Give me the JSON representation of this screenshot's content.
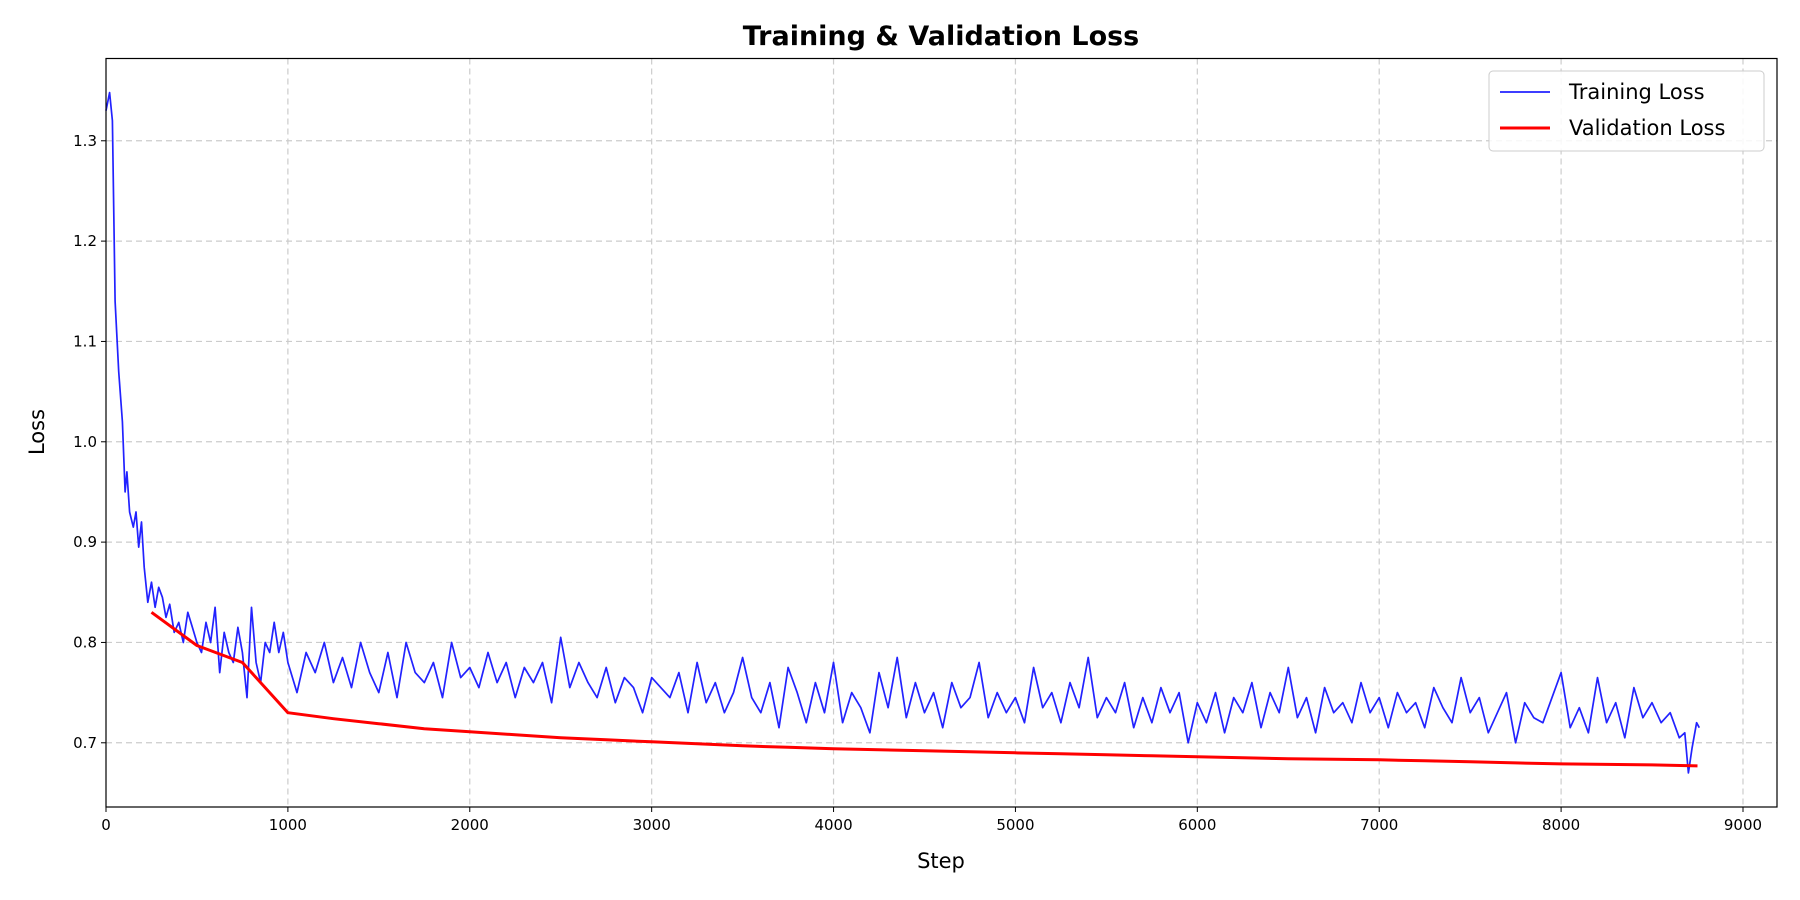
{
  "chart_data": {
    "type": "line",
    "title": "Training & Validation Loss",
    "xlabel": "Step",
    "ylabel": "Loss",
    "xlim": [
      0,
      9187
    ],
    "ylim": [
      0.636,
      1.382
    ],
    "xticks": [
      0,
      1000,
      2000,
      3000,
      4000,
      5000,
      6000,
      7000,
      8000,
      9000
    ],
    "xtick_labels": [
      "0",
      "1000",
      "2000",
      "3000",
      "4000",
      "5000",
      "6000",
      "7000",
      "8000",
      "9000"
    ],
    "yticks": [
      0.7,
      0.8,
      0.9,
      1.0,
      1.1,
      1.2,
      1.3
    ],
    "ytick_labels": [
      "0.7",
      "0.8",
      "0.9",
      "1.0",
      "1.1",
      "1.2",
      "1.3"
    ],
    "grid": true,
    "legend_position": "top-right",
    "series": [
      {
        "name": "Training Loss",
        "color": "#2222ff",
        "early": [
          [
            0,
            1.33
          ],
          [
            20,
            1.348
          ],
          [
            35,
            1.32
          ],
          [
            50,
            1.14
          ],
          [
            70,
            1.07
          ],
          [
            90,
            1.02
          ],
          [
            105,
            0.95
          ],
          [
            115,
            0.97
          ],
          [
            130,
            0.93
          ],
          [
            150,
            0.915
          ],
          [
            165,
            0.93
          ],
          [
            180,
            0.895
          ],
          [
            195,
            0.92
          ],
          [
            210,
            0.875
          ],
          [
            230,
            0.84
          ],
          [
            250,
            0.86
          ],
          [
            270,
            0.835
          ],
          [
            290,
            0.855
          ],
          [
            310,
            0.845
          ],
          [
            330,
            0.825
          ],
          [
            350,
            0.838
          ],
          [
            375,
            0.81
          ],
          [
            400,
            0.82
          ],
          [
            425,
            0.8
          ],
          [
            450,
            0.83
          ],
          [
            475,
            0.815
          ],
          [
            500,
            0.8
          ],
          [
            525,
            0.79
          ],
          [
            550,
            0.82
          ],
          [
            575,
            0.8
          ],
          [
            600,
            0.835
          ],
          [
            625,
            0.77
          ],
          [
            650,
            0.81
          ],
          [
            675,
            0.79
          ],
          [
            700,
            0.78
          ],
          [
            725,
            0.815
          ],
          [
            750,
            0.79
          ],
          [
            775,
            0.745
          ],
          [
            800,
            0.835
          ],
          [
            825,
            0.78
          ],
          [
            850,
            0.76
          ],
          [
            875,
            0.8
          ],
          [
            900,
            0.79
          ],
          [
            925,
            0.82
          ],
          [
            950,
            0.79
          ],
          [
            975,
            0.81
          ],
          [
            1000,
            0.78
          ]
        ],
        "regular": {
          "start": 1050,
          "step": 50,
          "values": [
            0.75,
            0.79,
            0.77,
            0.8,
            0.76,
            0.785,
            0.755,
            0.8,
            0.77,
            0.75,
            0.79,
            0.745,
            0.8,
            0.77,
            0.76,
            0.78,
            0.745,
            0.8,
            0.765,
            0.775,
            0.755,
            0.79,
            0.76,
            0.78,
            0.745,
            0.775,
            0.76,
            0.78,
            0.74,
            0.805,
            0.755,
            0.78,
            0.76,
            0.745,
            0.775,
            0.74,
            0.765,
            0.755,
            0.73,
            0.765,
            0.755,
            0.745,
            0.77,
            0.73,
            0.78,
            0.74,
            0.76,
            0.73,
            0.75,
            0.785,
            0.745,
            0.73,
            0.76,
            0.715,
            0.775,
            0.75,
            0.72,
            0.76,
            0.73,
            0.78,
            0.72,
            0.75,
            0.735,
            0.71,
            0.77,
            0.735,
            0.785,
            0.725,
            0.76,
            0.73,
            0.75,
            0.715,
            0.76,
            0.735,
            0.745,
            0.78,
            0.725,
            0.75,
            0.73,
            0.745,
            0.72,
            0.775,
            0.735,
            0.75,
            0.72,
            0.76,
            0.735,
            0.785,
            0.725,
            0.745,
            0.73,
            0.76,
            0.715,
            0.745,
            0.72,
            0.755,
            0.73,
            0.75,
            0.7,
            0.74,
            0.72,
            0.75,
            0.71,
            0.745,
            0.73,
            0.76,
            0.715,
            0.75,
            0.73,
            0.775,
            0.725,
            0.745,
            0.71,
            0.755,
            0.73,
            0.74,
            0.72,
            0.76,
            0.73,
            0.745,
            0.715,
            0.75,
            0.73,
            0.74,
            0.715,
            0.755,
            0.735,
            0.72,
            0.765,
            0.73,
            0.745,
            0.71,
            0.73,
            0.75,
            0.7,
            0.74,
            0.725,
            0.72,
            0.745,
            0.77,
            0.715,
            0.735,
            0.71,
            0.765,
            0.72,
            0.74,
            0.705,
            0.755,
            0.725,
            0.74
          ]
        },
        "tail": [
          [
            8550,
            0.72
          ],
          [
            8600,
            0.73
          ],
          [
            8650,
            0.705
          ],
          [
            8680,
            0.71
          ],
          [
            8700,
            0.67
          ],
          [
            8720,
            0.695
          ],
          [
            8745,
            0.72
          ],
          [
            8760,
            0.715
          ]
        ]
      },
      {
        "name": "Validation Loss",
        "color": "#ff0000",
        "points": [
          [
            250,
            0.83
          ],
          [
            500,
            0.797
          ],
          [
            750,
            0.78
          ],
          [
            1000,
            0.73
          ],
          [
            1250,
            0.724
          ],
          [
            1500,
            0.719
          ],
          [
            1750,
            0.714
          ],
          [
            2000,
            0.711
          ],
          [
            2250,
            0.708
          ],
          [
            2500,
            0.705
          ],
          [
            2750,
            0.703
          ],
          [
            3000,
            0.701
          ],
          [
            3250,
            0.699
          ],
          [
            3500,
            0.697
          ],
          [
            3750,
            0.6955
          ],
          [
            4000,
            0.694
          ],
          [
            4250,
            0.693
          ],
          [
            4500,
            0.692
          ],
          [
            4750,
            0.691
          ],
          [
            5000,
            0.69
          ],
          [
            5250,
            0.689
          ],
          [
            5500,
            0.688
          ],
          [
            5750,
            0.687
          ],
          [
            6000,
            0.686
          ],
          [
            6250,
            0.685
          ],
          [
            6500,
            0.684
          ],
          [
            6750,
            0.6835
          ],
          [
            7000,
            0.683
          ],
          [
            7250,
            0.682
          ],
          [
            7500,
            0.681
          ],
          [
            7750,
            0.68
          ],
          [
            8000,
            0.679
          ],
          [
            8250,
            0.6785
          ],
          [
            8500,
            0.678
          ],
          [
            8750,
            0.677
          ]
        ]
      }
    ]
  }
}
